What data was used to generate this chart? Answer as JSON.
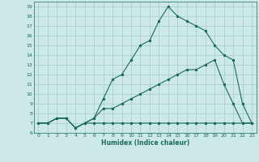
{
  "xlabel": "Humidex (Indice chaleur)",
  "background_color": "#cce8e8",
  "grid_color": "#aacfcf",
  "line_color": "#1a6b5a",
  "xlim": [
    -0.5,
    23.5
  ],
  "ylim": [
    6,
    19.5
  ],
  "xticks": [
    0,
    1,
    2,
    3,
    4,
    5,
    6,
    7,
    8,
    9,
    10,
    11,
    12,
    13,
    14,
    15,
    16,
    17,
    18,
    19,
    20,
    21,
    22,
    23
  ],
  "yticks": [
    6,
    7,
    8,
    9,
    10,
    11,
    12,
    13,
    14,
    15,
    16,
    17,
    18,
    19
  ],
  "line1_x": [
    0,
    1,
    2,
    3,
    4,
    5,
    6,
    7,
    8,
    9,
    10,
    11,
    12,
    13,
    14,
    15,
    16,
    17,
    18,
    19,
    20,
    21,
    22,
    23
  ],
  "line1_y": [
    7,
    7,
    7.5,
    7.5,
    6.5,
    7,
    7,
    7,
    7,
    7,
    7,
    7,
    7,
    7,
    7,
    7,
    7,
    7,
    7,
    7,
    7,
    7,
    7,
    7
  ],
  "line2_x": [
    0,
    1,
    2,
    3,
    4,
    5,
    6,
    7,
    8,
    9,
    10,
    11,
    12,
    13,
    14,
    15,
    16,
    17,
    18,
    19,
    20,
    21,
    22,
    23
  ],
  "line2_y": [
    7,
    7,
    7.5,
    7.5,
    6.5,
    7,
    7.5,
    9.5,
    11.5,
    12,
    13.5,
    15,
    15.5,
    17.5,
    19,
    18,
    17.5,
    17,
    16.5,
    15,
    14,
    13.5,
    9,
    7
  ],
  "line3_x": [
    0,
    1,
    2,
    3,
    4,
    5,
    6,
    7,
    8,
    9,
    10,
    11,
    12,
    13,
    14,
    15,
    16,
    17,
    18,
    19,
    20,
    21,
    22,
    23
  ],
  "line3_y": [
    7,
    7,
    7.5,
    7.5,
    6.5,
    7,
    7.5,
    8.5,
    8.5,
    9.0,
    9.5,
    10,
    10.5,
    11,
    11.5,
    12,
    12.5,
    12.5,
    13,
    13.5,
    11,
    9,
    7,
    7
  ]
}
